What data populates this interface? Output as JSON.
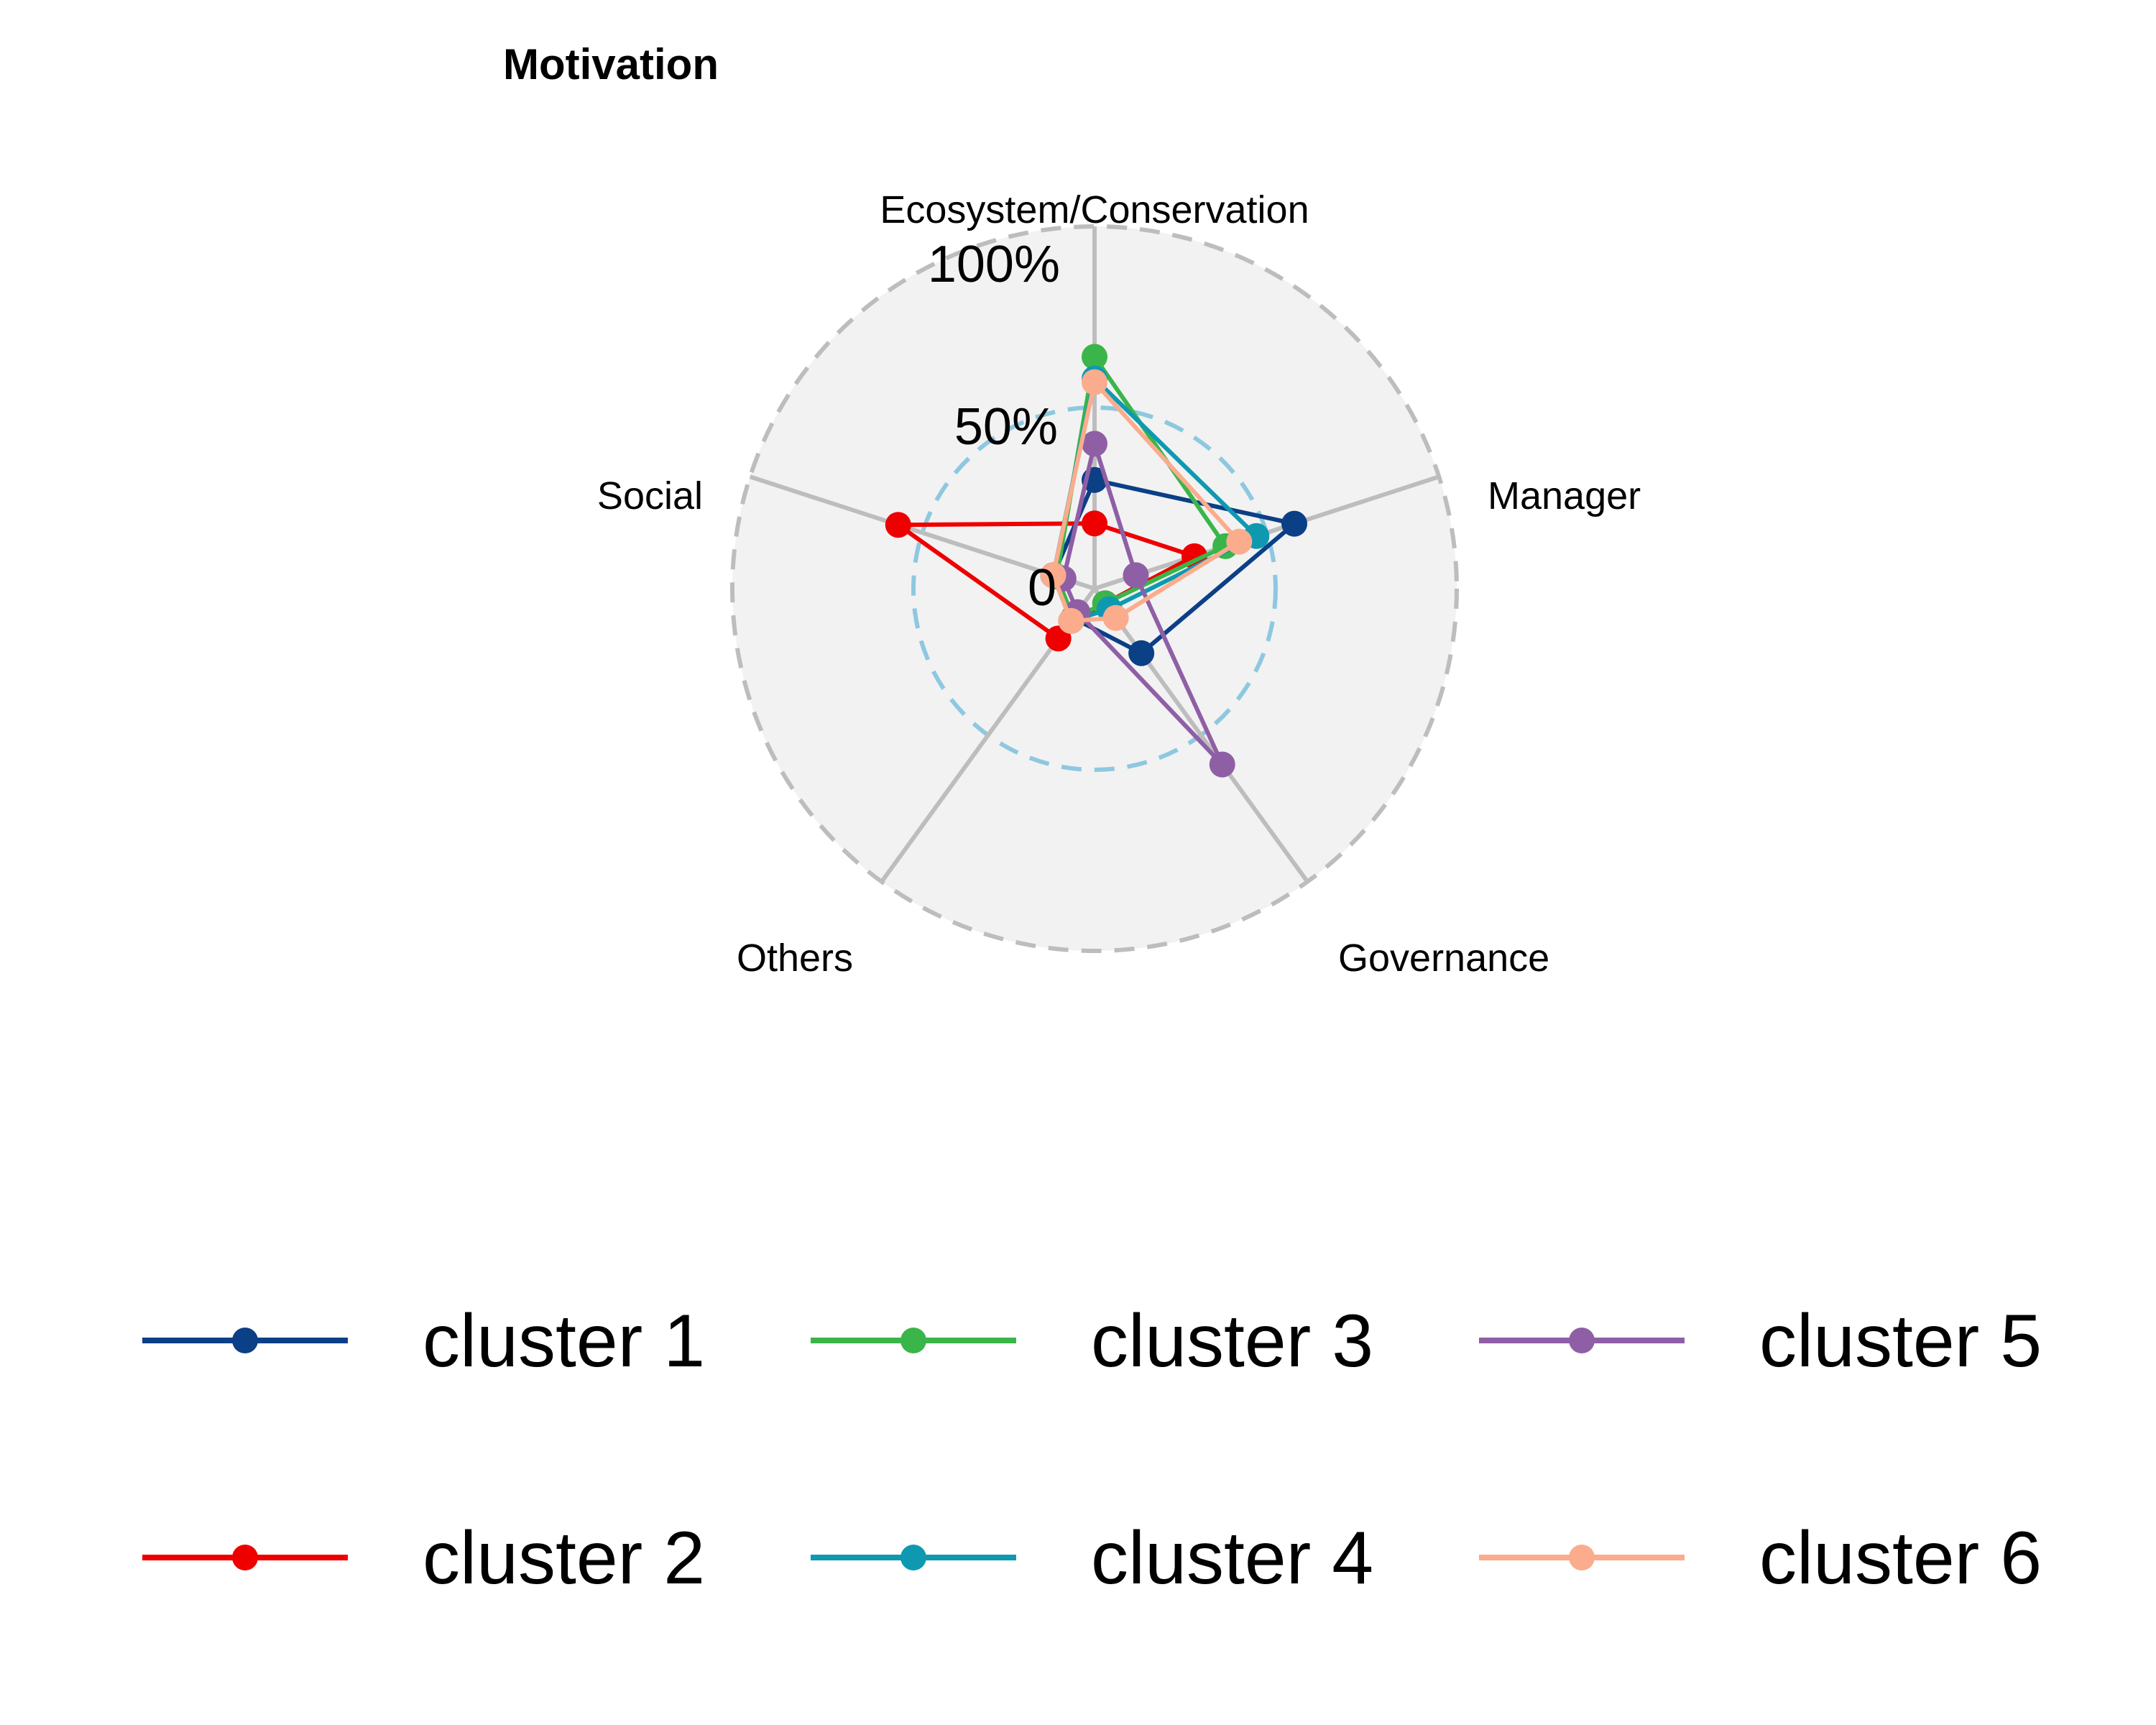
{
  "chart_data": {
    "type": "radar",
    "title": "Motivation",
    "axes": [
      "Ecosystem/Conservation",
      "Manager",
      "Governance",
      "Others",
      "Social"
    ],
    "tick_labels": [
      "0",
      "50%",
      "100%"
    ],
    "range": [
      0,
      100
    ],
    "series": [
      {
        "name": "cluster 1",
        "color": "#0B3F86",
        "values": [
          30,
          58,
          22,
          10,
          12
        ]
      },
      {
        "name": "cluster 2",
        "color": "#EE0000",
        "values": [
          18,
          29,
          5,
          17,
          57
        ]
      },
      {
        "name": "cluster 3",
        "color": "#3AB54A",
        "values": [
          64,
          38,
          5,
          10,
          11
        ]
      },
      {
        "name": "cluster 4",
        "color": "#0F99B1",
        "values": [
          58,
          47,
          7,
          11,
          12
        ]
      },
      {
        "name": "cluster 5",
        "color": "#8F5FA6",
        "values": [
          40,
          12,
          60,
          8,
          9
        ]
      },
      {
        "name": "cluster 6",
        "color": "#FBAC8D",
        "values": [
          57,
          42,
          10,
          11,
          12
        ]
      }
    ],
    "legend_position": "bottom"
  }
}
